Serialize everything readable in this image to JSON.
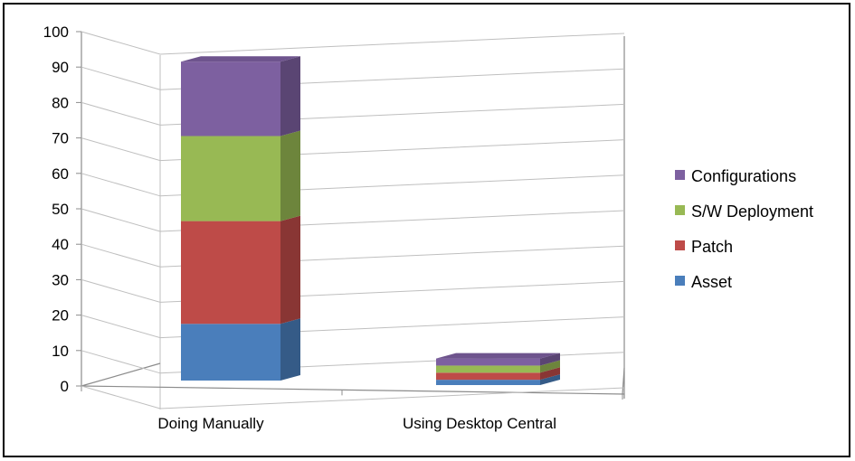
{
  "chart_data": {
    "type": "bar",
    "stacked": true,
    "three_d": true,
    "categories": [
      "Doing Manually",
      "Using Desktop Central"
    ],
    "series": [
      {
        "name": "Asset",
        "values": [
          16,
          1.5
        ],
        "color": "#4A7EBB"
      },
      {
        "name": "Patch",
        "values": [
          29,
          2
        ],
        "color": "#BE4B48"
      },
      {
        "name": "S/W Deployment",
        "values": [
          24,
          2
        ],
        "color": "#98B954"
      },
      {
        "name": "Configurations",
        "values": [
          21,
          2
        ],
        "color": "#7D60A0"
      }
    ],
    "ylim": [
      0,
      100
    ],
    "yticks": [
      "0",
      "10",
      "20",
      "30",
      "40",
      "50",
      "60",
      "70",
      "80",
      "90",
      "100"
    ],
    "grid": true,
    "legend_position": "right"
  }
}
